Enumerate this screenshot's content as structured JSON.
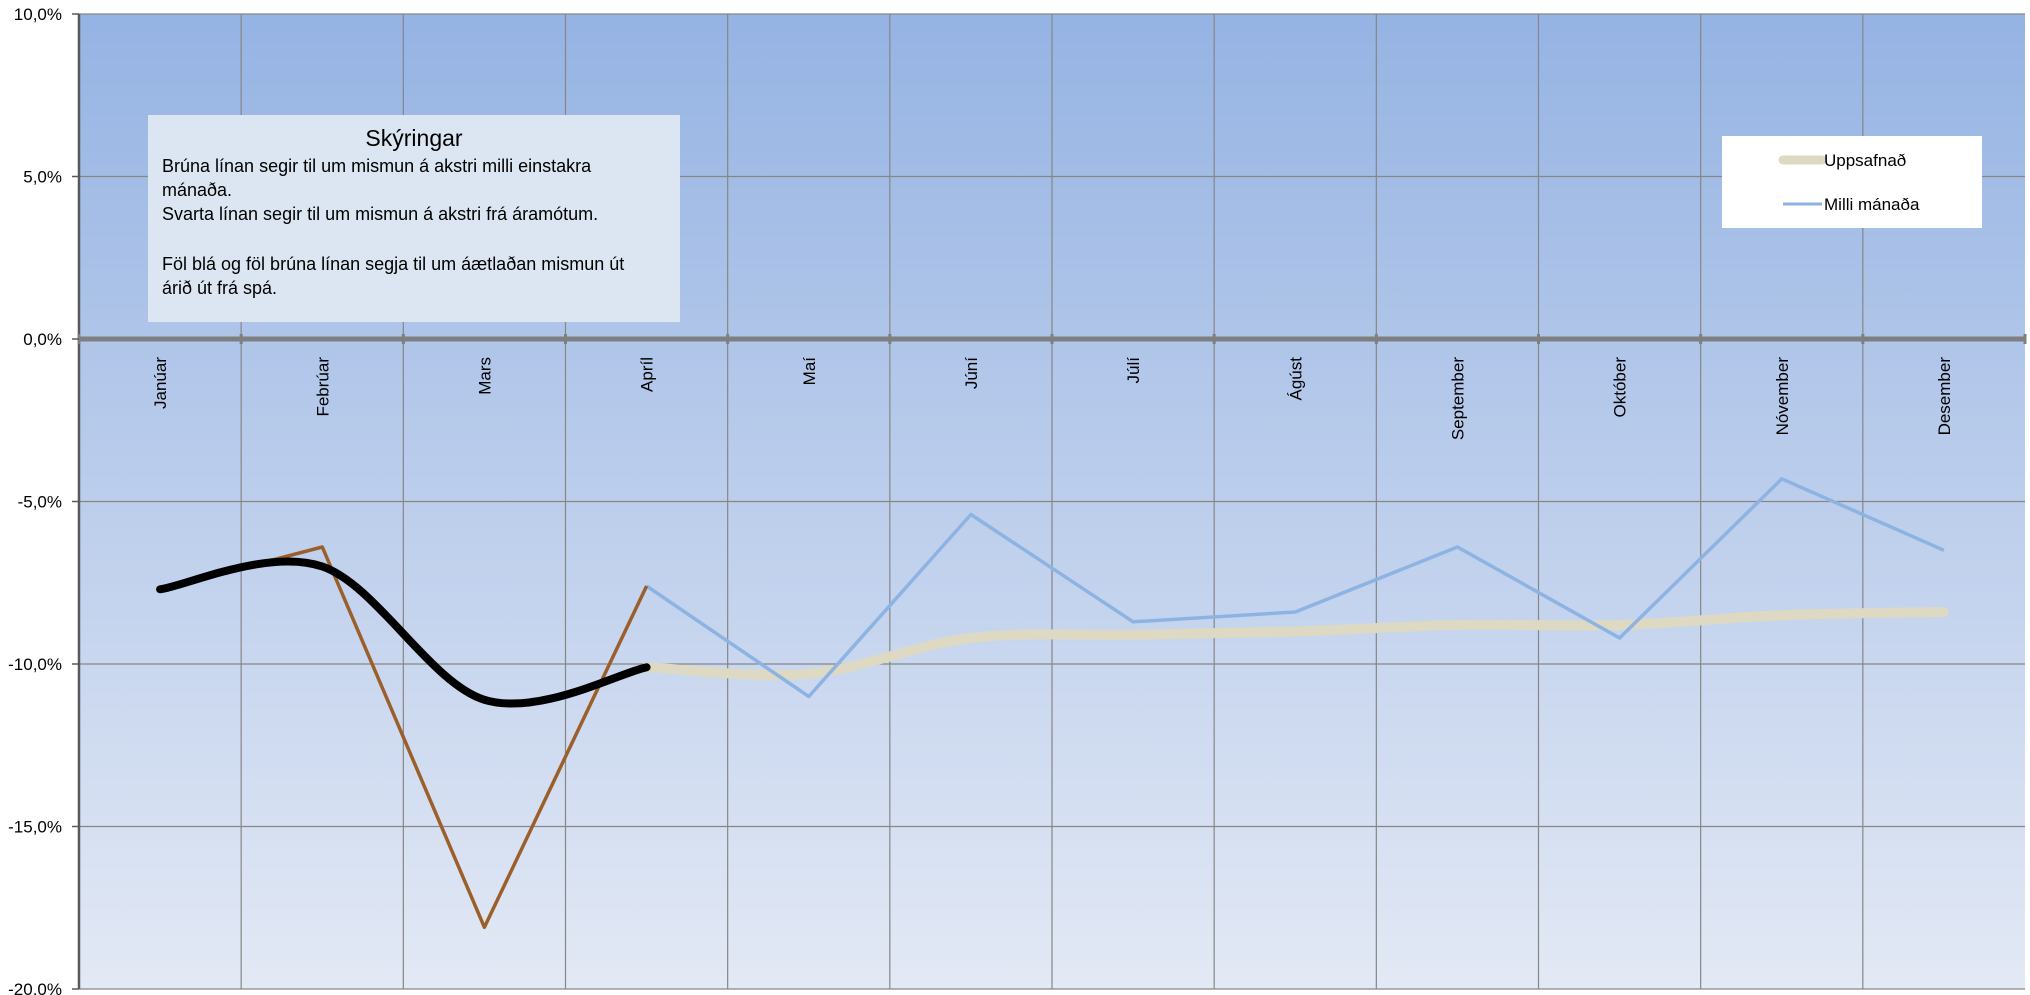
{
  "chart_data": {
    "type": "line",
    "categories": [
      "Janúar",
      "Febrúar",
      "Mars",
      "Apríl",
      "Maí",
      "Júní",
      "Júlí",
      "Ágúst",
      "September",
      "Október",
      "Nóvember",
      "Desember"
    ],
    "ylim": [
      -20,
      10
    ],
    "yticks": [
      10,
      5,
      0,
      -5,
      -10,
      -15,
      -20
    ],
    "ytick_labels": [
      "10,0%",
      "5,0%",
      "0,0%",
      "-5,0%",
      "-10,0%",
      "-15,0%",
      "-20,0%"
    ],
    "grid": true,
    "legend_position": "top-right",
    "series": [
      {
        "name": "Uppsafnað",
        "color": "#ddd9c3",
        "style": "forecast",
        "values": [
          null,
          null,
          null,
          -10.1,
          -10.3,
          -9.2,
          -9.1,
          -9.0,
          -8.8,
          -8.8,
          -8.5,
          -8.4
        ]
      },
      {
        "name": "Milli mánaða",
        "color": "#8db3e2",
        "style": "forecast",
        "values": [
          null,
          null,
          null,
          -7.6,
          -11.0,
          -5.4,
          -8.7,
          -8.4,
          -6.4,
          -9.2,
          -4.3,
          -6.5
        ]
      },
      {
        "color": "#000000",
        "style": "actual",
        "values": [
          -7.7,
          -7.0,
          -11.1,
          -10.1,
          null,
          null,
          null,
          null,
          null,
          null,
          null,
          null
        ]
      },
      {
        "color": "#9b5f2b",
        "style": "actual",
        "values": [
          -7.7,
          -6.4,
          -18.1,
          -7.6,
          null,
          null,
          null,
          null,
          null,
          null,
          null,
          null
        ]
      }
    ],
    "annotation": {
      "title": "Skýringar",
      "lines": [
        "Brúna línan segir til um mismun á akstri milli einstakra",
        "mánaða.",
        "Svarta línan segir til um mismun á akstri frá áramótum.",
        "",
        "Föl blá og föl brúna línan segja til um áætlaðan mismun út",
        "árið út frá spá."
      ]
    },
    "colors": {
      "background_top": "#95b3e3",
      "background_bottom": "#e3e9f5",
      "gridline": "#868686",
      "zero_axis": "#7f7f7f"
    }
  }
}
